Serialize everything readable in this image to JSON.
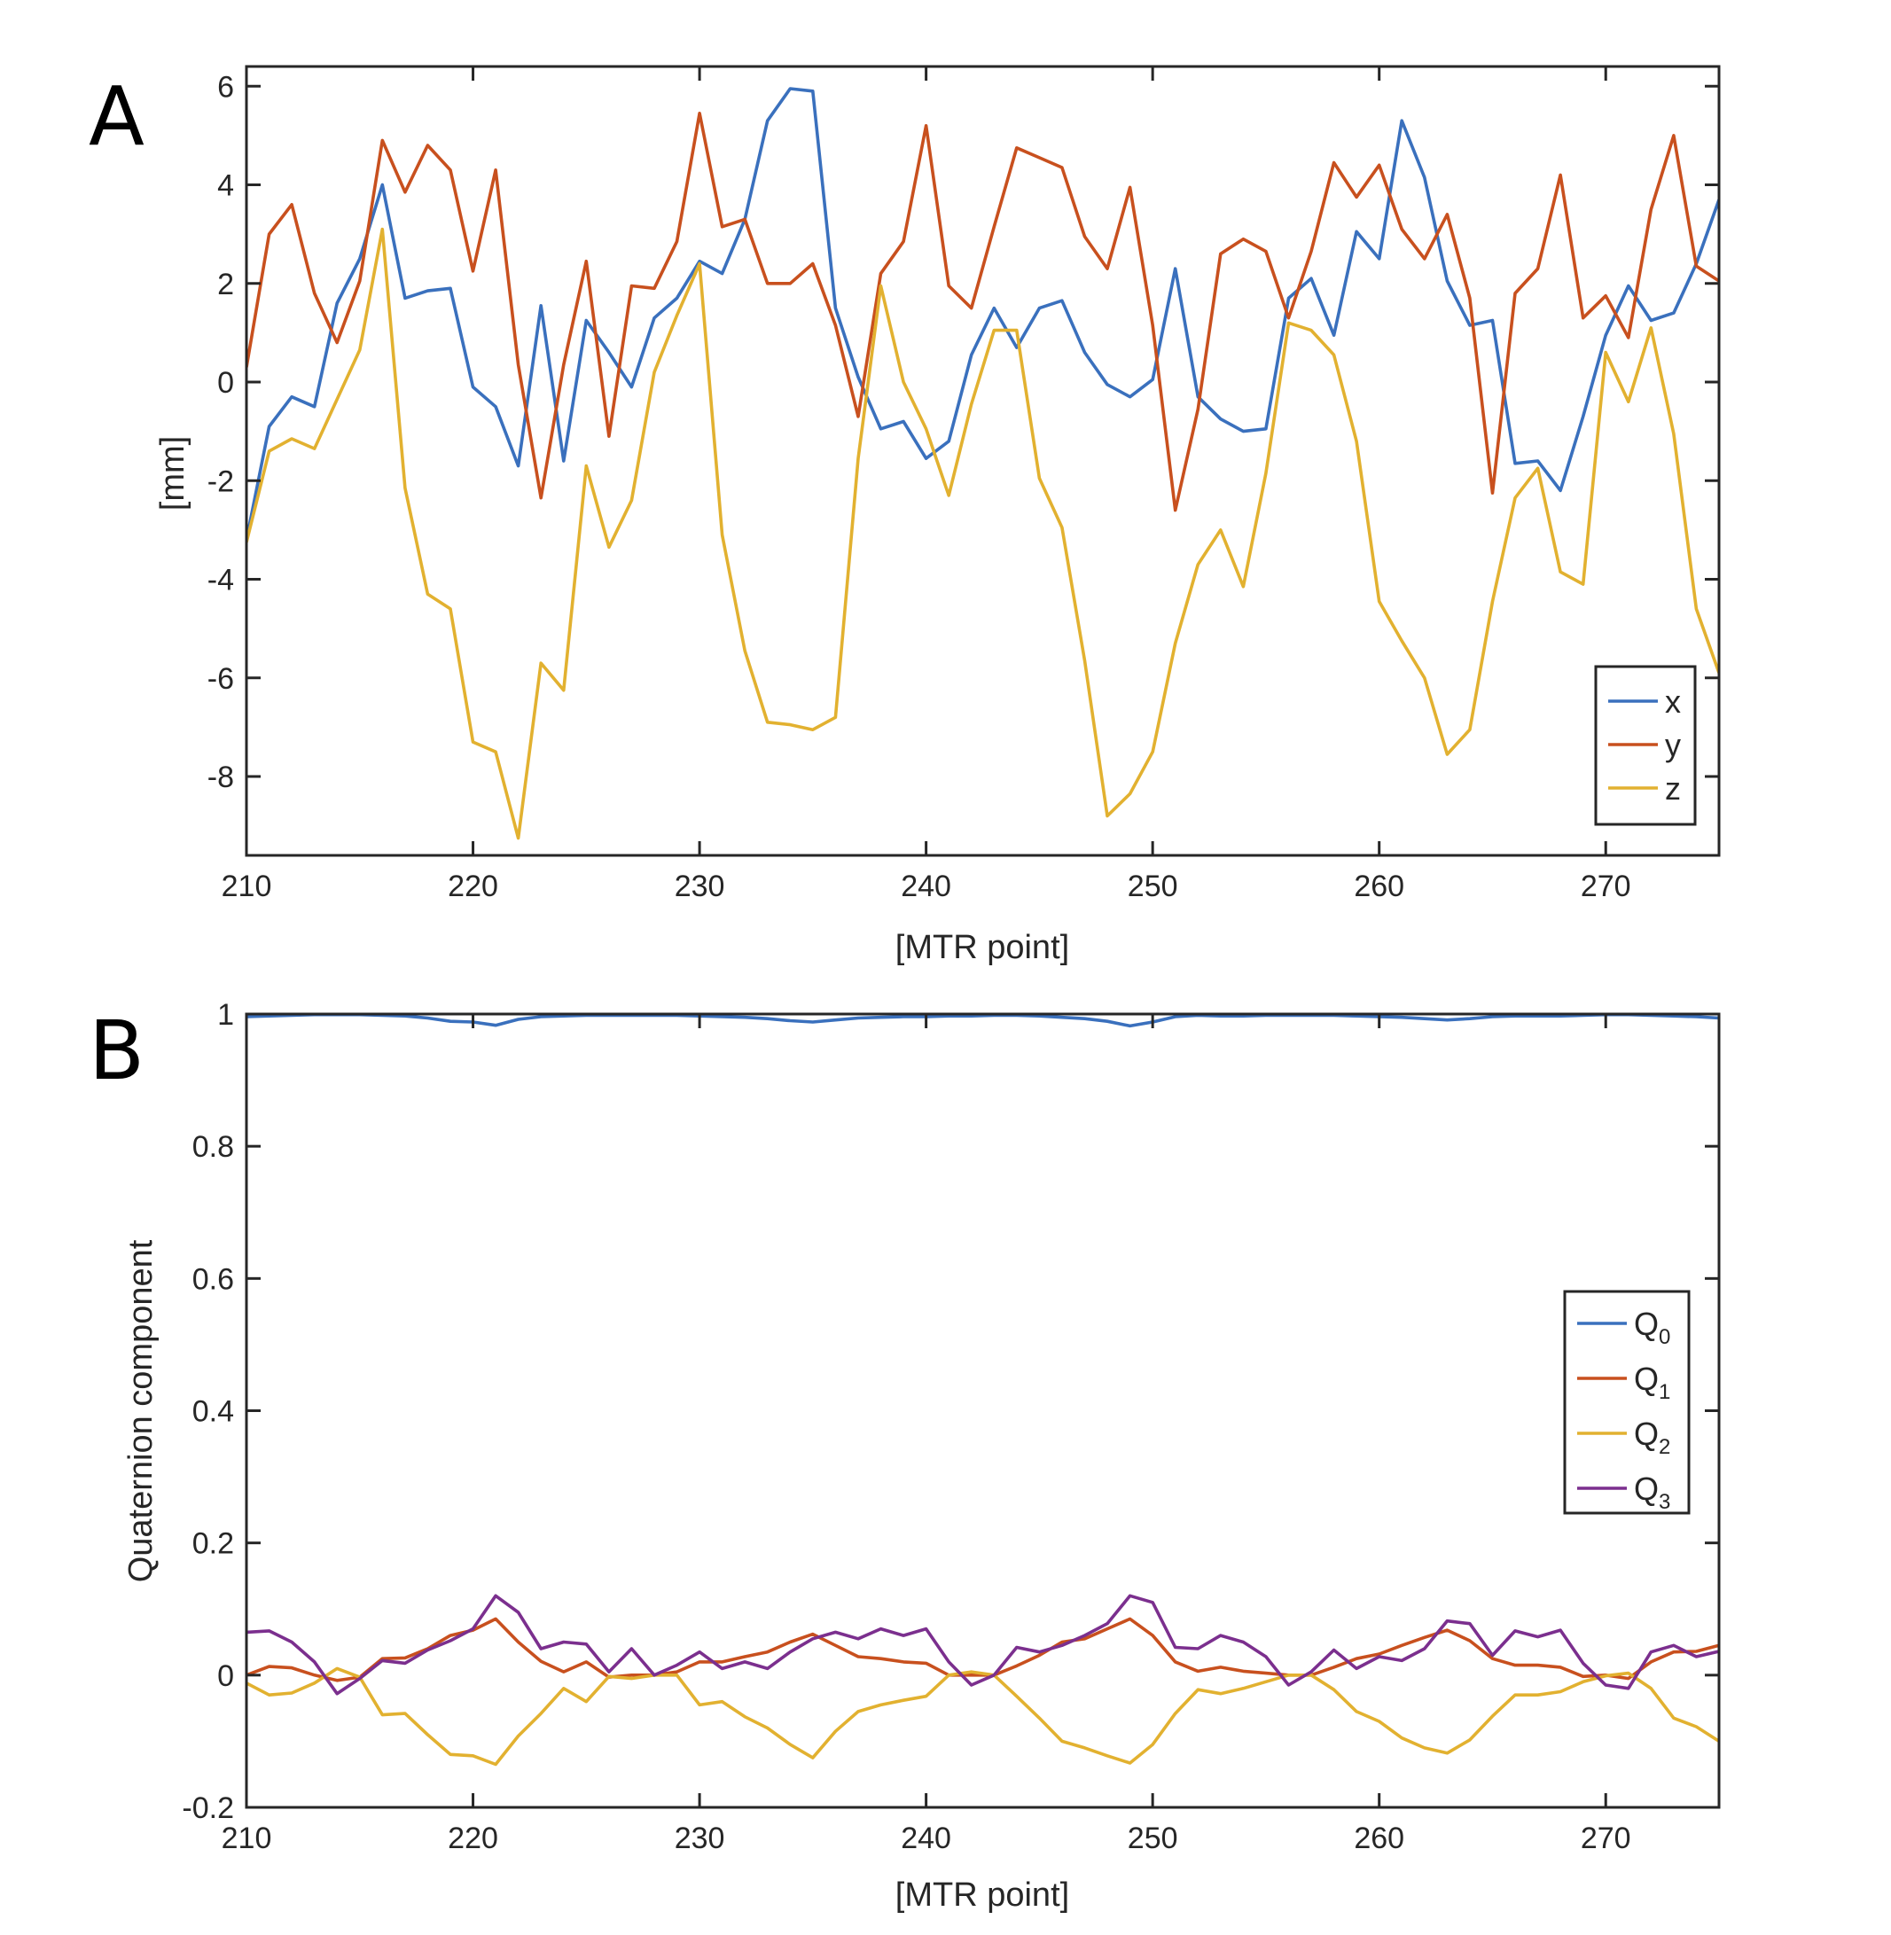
{
  "figure": {
    "panels": [
      "A",
      "B"
    ]
  },
  "chart_data": [
    {
      "type": "line",
      "panel_label": "A",
      "xlabel": "[MTR point]",
      "ylabel": "[mm]",
      "xlim": [
        210,
        275
      ],
      "ylim": [
        -9.6,
        6.4
      ],
      "xticks": [
        210,
        220,
        230,
        240,
        250,
        260,
        270
      ],
      "yticks": [
        -8,
        -6,
        -4,
        -2,
        0,
        2,
        4,
        6
      ],
      "legend_position": "bottom-right",
      "x": [
        210,
        211,
        212,
        213,
        214,
        215,
        216,
        217,
        218,
        219,
        220,
        221,
        222,
        223,
        224,
        225,
        226,
        227,
        228,
        229,
        230,
        231,
        232,
        233,
        234,
        235,
        236,
        237,
        238,
        239,
        240,
        241,
        242,
        243,
        244,
        245,
        246,
        247,
        248,
        249,
        250,
        251,
        252,
        253,
        254,
        255,
        256,
        257,
        258,
        259,
        260,
        261,
        262,
        263,
        264,
        265,
        266,
        267,
        268,
        269,
        270,
        271,
        272,
        273,
        274,
        275
      ],
      "series": [
        {
          "name": "x",
          "color": "#3a70bd",
          "values": [
            -3.2,
            -0.9,
            -0.3,
            -0.5,
            1.6,
            2.5,
            4.0,
            1.7,
            1.85,
            1.9,
            -0.1,
            -0.5,
            -1.7,
            1.55,
            -1.6,
            1.25,
            0.6,
            -0.1,
            1.3,
            1.7,
            2.45,
            2.2,
            3.3,
            5.3,
            5.95,
            5.9,
            1.5,
            0.1,
            -0.95,
            -0.8,
            -1.55,
            -1.2,
            0.55,
            1.5,
            0.7,
            1.5,
            1.65,
            0.6,
            -0.05,
            -0.3,
            0.05,
            2.3,
            -0.3,
            -0.75,
            -1.0,
            -0.95,
            1.7,
            2.1,
            0.95,
            3.05,
            2.5,
            5.3,
            4.15,
            2.05,
            1.15,
            1.25,
            -1.65,
            -1.6,
            -2.2,
            -0.7,
            0.95,
            1.95,
            1.25,
            1.4,
            2.4,
            3.7
          ]
        },
        {
          "name": "y",
          "color": "#c8501e",
          "values": [
            0.3,
            3.0,
            3.6,
            1.8,
            0.8,
            2.05,
            4.9,
            3.85,
            4.8,
            4.3,
            2.25,
            4.3,
            0.35,
            -2.35,
            0.35,
            2.45,
            -1.1,
            1.95,
            1.9,
            2.85,
            5.45,
            3.15,
            3.3,
            2.0,
            2.0,
            2.4,
            1.15,
            -0.7,
            2.2,
            2.85,
            5.2,
            1.95,
            1.5,
            3.15,
            4.75,
            4.55,
            4.35,
            2.95,
            2.3,
            3.95,
            1.15,
            -2.6,
            -0.55,
            2.6,
            2.9,
            2.65,
            1.3,
            2.65,
            4.45,
            3.75,
            4.4,
            3.1,
            2.5,
            3.4,
            1.7,
            -2.25,
            1.8,
            2.3,
            4.2,
            1.3,
            1.75,
            0.9,
            3.5,
            5.0,
            2.35,
            2.05
          ]
        },
        {
          "name": "z",
          "color": "#e2b130",
          "values": [
            -3.25,
            -1.4,
            -1.15,
            -1.35,
            -0.35,
            0.65,
            3.1,
            -2.15,
            -4.3,
            -4.6,
            -7.3,
            -7.5,
            -9.25,
            -5.7,
            -6.25,
            -1.7,
            -3.35,
            -2.4,
            0.2,
            1.35,
            2.4,
            -3.1,
            -5.45,
            -6.9,
            -6.95,
            -7.05,
            -6.8,
            -1.55,
            1.95,
            0.0,
            -0.95,
            -2.3,
            -0.45,
            1.05,
            1.05,
            -1.95,
            -2.95,
            -5.65,
            -8.8,
            -8.35,
            -7.5,
            -5.3,
            -3.7,
            -3.0,
            -4.15,
            -1.85,
            1.2,
            1.05,
            0.55,
            -1.2,
            -4.45,
            -5.25,
            -6.0,
            -7.55,
            -7.05,
            -4.45,
            -2.35,
            -1.75,
            -3.85,
            -4.1,
            0.6,
            -0.4,
            1.1,
            -1.05,
            -4.6,
            -5.9
          ]
        }
      ]
    },
    {
      "type": "line",
      "panel_label": "B",
      "xlabel": "[MTR point]",
      "ylabel": "Quaternion component",
      "xlim": [
        210,
        275
      ],
      "ylim": [
        -0.2,
        1.0
      ],
      "xticks": [
        210,
        220,
        230,
        240,
        250,
        260,
        270
      ],
      "yticks": [
        -0.2,
        0,
        0.2,
        0.4,
        0.6,
        0.8,
        1
      ],
      "ytick_labels": [
        "-0.2",
        "0",
        "0.2",
        "0.4",
        "0.6",
        "0.8",
        "1"
      ],
      "legend_position": "middle-right",
      "x": [
        210,
        211,
        212,
        213,
        214,
        215,
        216,
        217,
        218,
        219,
        220,
        221,
        222,
        223,
        224,
        225,
        226,
        227,
        228,
        229,
        230,
        231,
        232,
        233,
        234,
        235,
        236,
        237,
        238,
        239,
        240,
        241,
        242,
        243,
        244,
        245,
        246,
        247,
        248,
        249,
        250,
        251,
        252,
        253,
        254,
        255,
        256,
        257,
        258,
        259,
        260,
        261,
        262,
        263,
        264,
        265,
        266,
        267,
        268,
        269,
        270,
        271,
        272,
        273,
        274,
        275
      ],
      "series": [
        {
          "name": "Q",
          "subscript": "0",
          "color": "#3a70bd",
          "values": [
            0.996,
            0.997,
            0.998,
            0.999,
            0.999,
            0.999,
            0.998,
            0.997,
            0.994,
            0.989,
            0.988,
            0.983,
            0.992,
            0.996,
            0.997,
            0.998,
            0.998,
            0.998,
            0.998,
            0.998,
            0.997,
            0.996,
            0.995,
            0.993,
            0.99,
            0.988,
            0.991,
            0.994,
            0.995,
            0.996,
            0.996,
            0.997,
            0.997,
            0.998,
            0.998,
            0.997,
            0.995,
            0.993,
            0.989,
            0.982,
            0.988,
            0.996,
            0.998,
            0.997,
            0.997,
            0.998,
            0.998,
            0.998,
            0.998,
            0.997,
            0.996,
            0.995,
            0.993,
            0.991,
            0.993,
            0.996,
            0.997,
            0.997,
            0.997,
            0.998,
            0.999,
            0.999,
            0.998,
            0.997,
            0.996,
            0.994
          ]
        },
        {
          "name": "Q",
          "subscript": "1",
          "color": "#c8501e",
          "values": [
            0.0,
            0.013,
            0.011,
            0.0,
            -0.008,
            -0.003,
            0.025,
            0.026,
            0.04,
            0.06,
            0.068,
            0.085,
            0.05,
            0.021,
            0.005,
            0.02,
            -0.003,
            0.0,
            0.0,
            0.005,
            0.02,
            0.02,
            0.028,
            0.035,
            0.05,
            0.062,
            0.045,
            0.028,
            0.025,
            0.02,
            0.018,
            0.0,
            0.0,
            0.0,
            0.014,
            0.03,
            0.05,
            0.055,
            0.07,
            0.085,
            0.06,
            0.02,
            0.006,
            0.012,
            0.006,
            0.003,
            0.0,
            0.0,
            0.012,
            0.025,
            0.032,
            0.045,
            0.057,
            0.068,
            0.052,
            0.025,
            0.015,
            0.015,
            0.012,
            -0.002,
            0.0,
            -0.005,
            0.02,
            0.035,
            0.036,
            0.045
          ]
        },
        {
          "name": "Q",
          "subscript": "2",
          "color": "#e2b130",
          "values": [
            -0.012,
            -0.03,
            -0.027,
            -0.012,
            0.01,
            -0.003,
            -0.06,
            -0.058,
            -0.09,
            -0.12,
            -0.122,
            -0.135,
            -0.092,
            -0.058,
            -0.02,
            -0.04,
            -0.002,
            -0.005,
            0.0,
            0.0,
            -0.045,
            -0.04,
            -0.063,
            -0.08,
            -0.105,
            -0.125,
            -0.085,
            -0.055,
            -0.045,
            -0.038,
            -0.032,
            0.0,
            0.005,
            0.0,
            -0.032,
            -0.065,
            -0.1,
            -0.11,
            -0.122,
            -0.133,
            -0.105,
            -0.058,
            -0.022,
            -0.028,
            -0.02,
            -0.01,
            0.0,
            0.0,
            -0.022,
            -0.055,
            -0.07,
            -0.095,
            -0.11,
            -0.118,
            -0.098,
            -0.062,
            -0.03,
            -0.03,
            -0.025,
            -0.01,
            -0.001,
            0.003,
            -0.02,
            -0.065,
            -0.078,
            -0.1
          ]
        },
        {
          "name": "Q",
          "subscript": "3",
          "color": "#7b2f8e",
          "values": [
            0.065,
            0.067,
            0.05,
            0.02,
            -0.028,
            -0.005,
            0.022,
            0.018,
            0.038,
            0.052,
            0.07,
            0.12,
            0.095,
            0.04,
            0.05,
            0.047,
            0.005,
            0.04,
            0.0,
            0.015,
            0.035,
            0.01,
            0.02,
            0.01,
            0.035,
            0.055,
            0.065,
            0.055,
            0.07,
            0.06,
            0.07,
            0.02,
            -0.015,
            0.0,
            0.042,
            0.035,
            0.045,
            0.06,
            0.078,
            0.12,
            0.11,
            0.042,
            0.04,
            0.06,
            0.05,
            0.028,
            -0.015,
            0.005,
            0.038,
            0.01,
            0.028,
            0.022,
            0.04,
            0.082,
            0.078,
            0.03,
            0.067,
            0.058,
            0.068,
            0.018,
            -0.015,
            -0.02,
            0.035,
            0.045,
            0.028,
            0.036
          ]
        }
      ]
    }
  ]
}
